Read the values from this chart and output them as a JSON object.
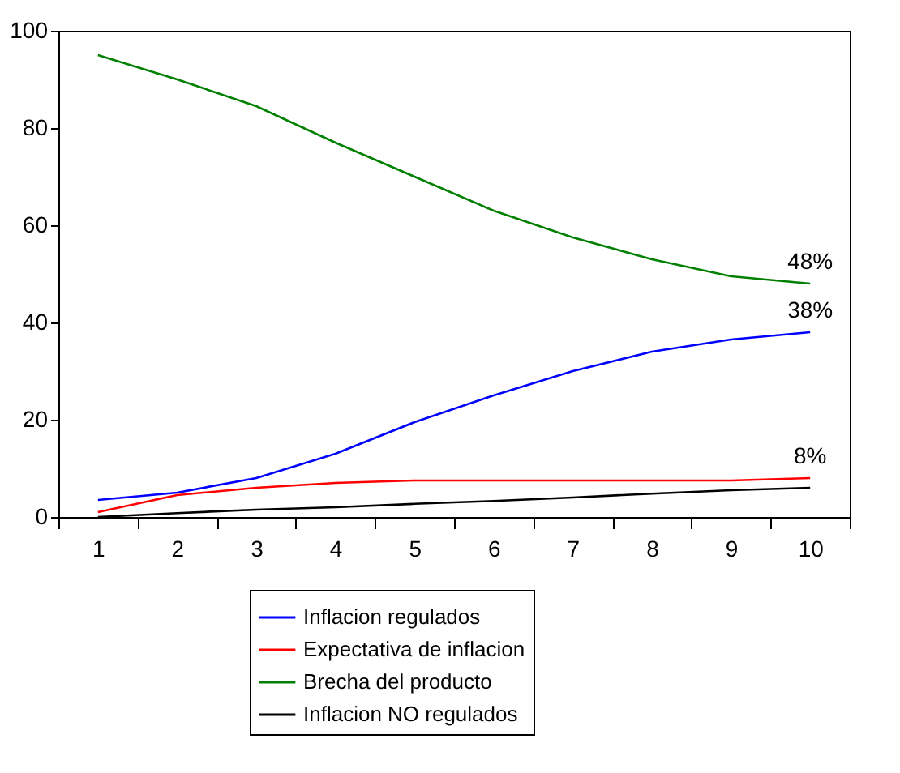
{
  "chart_data": {
    "type": "line",
    "categories": [
      "1",
      "2",
      "3",
      "4",
      "5",
      "6",
      "7",
      "8",
      "9",
      "10"
    ],
    "series": [
      {
        "name": "Inflacion regulados",
        "color": "#0000ff",
        "values": [
          3.5,
          5,
          8,
          13,
          19.5,
          25,
          30,
          34,
          36.5,
          38
        ]
      },
      {
        "name": "Expectativa de inflacion",
        "color": "#ff0000",
        "values": [
          1,
          4.5,
          6,
          7,
          7.5,
          7.5,
          7.5,
          7.5,
          7.5,
          8
        ]
      },
      {
        "name": "Brecha del producto",
        "color": "#008000",
        "values": [
          95,
          90,
          84.5,
          77,
          70,
          63,
          57.5,
          53,
          49.5,
          48
        ]
      },
      {
        "name": "Inflacion NO regulados",
        "color": "#000000",
        "values": [
          0,
          0.8,
          1.5,
          2,
          2.7,
          3.3,
          4,
          4.8,
          5.5,
          6
        ]
      }
    ],
    "ylim": [
      0,
      100
    ],
    "yticks": [
      0,
      20,
      40,
      60,
      80,
      100
    ],
    "grid": false,
    "legend": "bottom",
    "line_style": "solid",
    "marker": "none",
    "annotations": [
      {
        "text": "48%",
        "x": "10",
        "y": 48
      },
      {
        "text": "38%",
        "x": "10",
        "y": 38
      },
      {
        "text": "8%",
        "x": "10",
        "y": 8
      }
    ]
  }
}
